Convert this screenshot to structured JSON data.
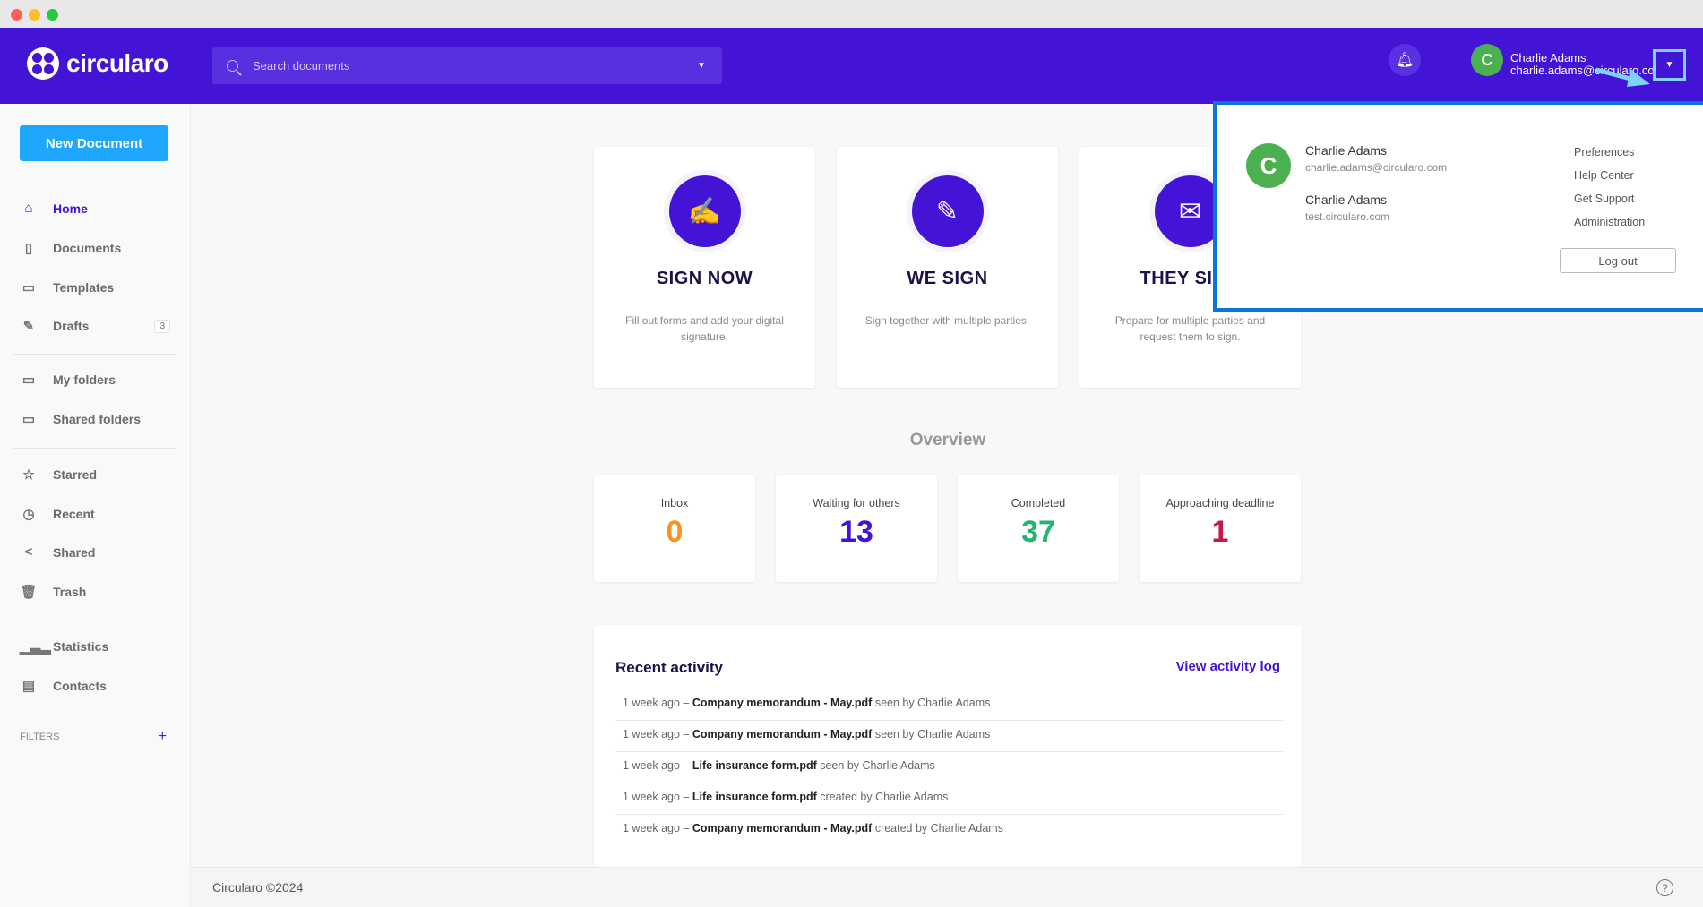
{
  "header": {
    "brand": "circularo",
    "search_placeholder": "Search documents",
    "user_name": "Charlie Adams",
    "user_email": "charlie.adams@circularo.com",
    "avatar_initial": "C",
    "brand_color": "#4414d6"
  },
  "sidebar": {
    "new_document": "New Document",
    "items": [
      {
        "label": "Home",
        "icon": "home-icon"
      },
      {
        "label": "Documents",
        "icon": "document-icon"
      },
      {
        "label": "Templates",
        "icon": "template-icon"
      },
      {
        "label": "Drafts",
        "icon": "edit-icon",
        "badge": "3"
      },
      {
        "label": "My folders",
        "icon": "folder-icon"
      },
      {
        "label": "Shared folders",
        "icon": "shared-folder-icon"
      },
      {
        "label": "Starred",
        "icon": "star-icon"
      },
      {
        "label": "Recent",
        "icon": "clock-icon"
      },
      {
        "label": "Shared",
        "icon": "share-icon"
      },
      {
        "label": "Trash",
        "icon": "trash-icon"
      },
      {
        "label": "Statistics",
        "icon": "chart-icon"
      },
      {
        "label": "Contacts",
        "icon": "contact-card-icon"
      }
    ],
    "filters_label": "FILTERS"
  },
  "actions": [
    {
      "title": "SIGN NOW",
      "desc": "Fill out forms and add your digital signature."
    },
    {
      "title": "WE SIGN",
      "desc": "Sign together with multiple parties."
    },
    {
      "title": "THEY SIGN",
      "desc": "Prepare for multiple parties and request them to sign."
    }
  ],
  "overview": {
    "title": "Overview",
    "stats": [
      {
        "label": "Inbox",
        "value": "0",
        "color": "#f7941d"
      },
      {
        "label": "Waiting for others",
        "value": "13",
        "color": "#4414d6"
      },
      {
        "label": "Completed",
        "value": "37",
        "color": "#22b573"
      },
      {
        "label": "Approaching deadline",
        "value": "1",
        "color": "#c8174b"
      }
    ]
  },
  "activity": {
    "title": "Recent activity",
    "view_log": "View activity log",
    "rows": [
      {
        "time": "1 week ago",
        "doc": "Company memorandum - May.pdf",
        "action": "seen by Charlie Adams"
      },
      {
        "time": "1 week ago",
        "doc": "Company memorandum - May.pdf",
        "action": "seen by Charlie Adams"
      },
      {
        "time": "1 week ago",
        "doc": "Life insurance form.pdf",
        "action": "seen by Charlie Adams"
      },
      {
        "time": "1 week ago",
        "doc": "Life insurance form.pdf",
        "action": "created by Charlie Adams"
      },
      {
        "time": "1 week ago",
        "doc": "Company memorandum - May.pdf",
        "action": "created by Charlie Adams"
      }
    ]
  },
  "user_menu": {
    "accounts": [
      {
        "name": "Charlie Adams",
        "sub": "charlie.adams@circularo.com"
      },
      {
        "name": "Charlie Adams",
        "sub": "test.circularo.com"
      }
    ],
    "links": [
      "Preferences",
      "Help Center",
      "Get Support",
      "Administration"
    ],
    "logout": "Log out"
  },
  "footer": {
    "copyright": "Circularo ©2024"
  }
}
